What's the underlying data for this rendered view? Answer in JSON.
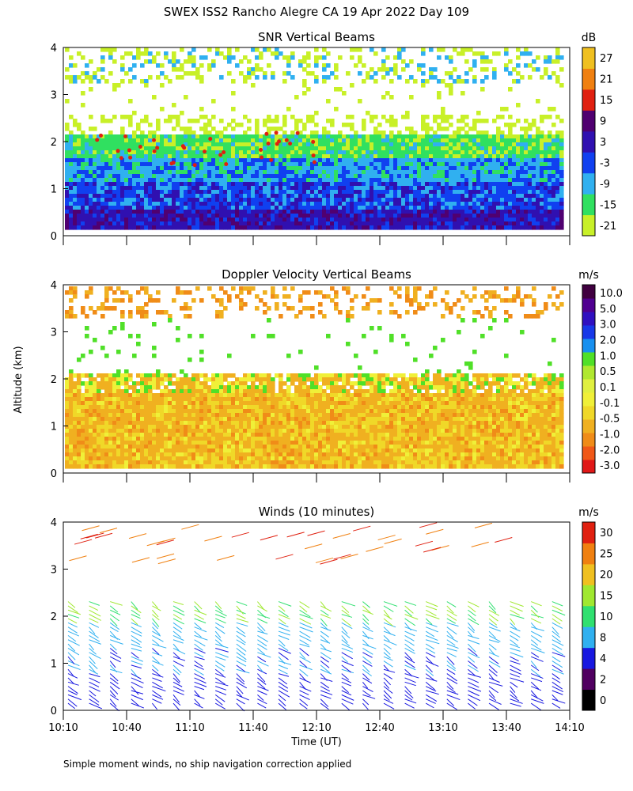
{
  "figure_title": "SWEX ISS2 Rancho Alegre CA  19 Apr 2022 Day 109",
  "xlabel": "Time (UT)",
  "ylabel": "Altitude (km)",
  "footnote": "Simple moment winds, no ship navigation correction applied",
  "colors": {
    "snr": [
      "#c8f028",
      "#30e060",
      "#30b0f0",
      "#1040f0",
      "#3010b0",
      "#500070",
      "#e02010",
      "#f08010",
      "#f0c020"
    ],
    "doppler": [
      "#e01818",
      "#f05818",
      "#f08c18",
      "#f0b020",
      "#f0d828",
      "#f0f038",
      "#e0f040",
      "#b0e830",
      "#50e028",
      "#1890f0",
      "#1838e8",
      "#3010c0",
      "#500090",
      "#400040"
    ],
    "winds": [
      "#000000",
      "#500060",
      "#1818e0",
      "#30b0f0",
      "#30e070",
      "#a0e830",
      "#f0c020",
      "#f08010",
      "#e02010"
    ]
  },
  "chart_data": [
    {
      "type": "heatmap",
      "title": "SNR Vertical Beams",
      "unit": "dB",
      "colorbar_ticks": [
        "27",
        "21",
        "15",
        "9",
        "3",
        "-3",
        "-9",
        "-15",
        "-21"
      ],
      "x_ticks": [
        "10:10",
        "10:40",
        "11:10",
        "11:40",
        "12:10",
        "12:40",
        "13:10",
        "13:40",
        "14:10"
      ],
      "y_ticks": [
        "0",
        "1",
        "2",
        "3",
        "4"
      ],
      "xlim": [
        "10:10",
        "14:10"
      ],
      "ylim": [
        0,
        4
      ]
    },
    {
      "type": "heatmap",
      "title": "Doppler Velocity Vertical Beams",
      "unit": "m/s",
      "colorbar_ticks": [
        "10.0",
        "5.0",
        "3.0",
        "2.0",
        "1.0",
        "0.5",
        "0.1",
        "-0.1",
        "-0.5",
        "-1.0",
        "-2.0",
        "-3.0"
      ],
      "x_ticks": [
        "10:10",
        "10:40",
        "11:10",
        "11:40",
        "12:10",
        "12:40",
        "13:10",
        "13:40",
        "14:10"
      ],
      "y_ticks": [
        "0",
        "1",
        "2",
        "3",
        "4"
      ],
      "xlim": [
        "10:10",
        "14:10"
      ],
      "ylim": [
        0,
        4
      ]
    },
    {
      "type": "scatter",
      "title": "Winds (10 minutes)",
      "unit": "m/s",
      "colorbar_ticks": [
        "30",
        "25",
        "20",
        "15",
        "10",
        "8",
        "4",
        "2",
        "0"
      ],
      "x_ticks": [
        "10:10",
        "10:40",
        "11:10",
        "11:40",
        "12:10",
        "12:40",
        "13:10",
        "13:40",
        "14:10"
      ],
      "x_tick_labels_shown": [
        "10:10",
        "10:40",
        "11:10",
        "11:40",
        "12:10",
        "12:40",
        "13:10",
        "13:40",
        "14:10"
      ],
      "y_ticks": [
        "0",
        "1",
        "2",
        "3",
        "4"
      ],
      "xlim": [
        "10:10",
        "14:10"
      ],
      "ylim": [
        0,
        4
      ]
    }
  ]
}
